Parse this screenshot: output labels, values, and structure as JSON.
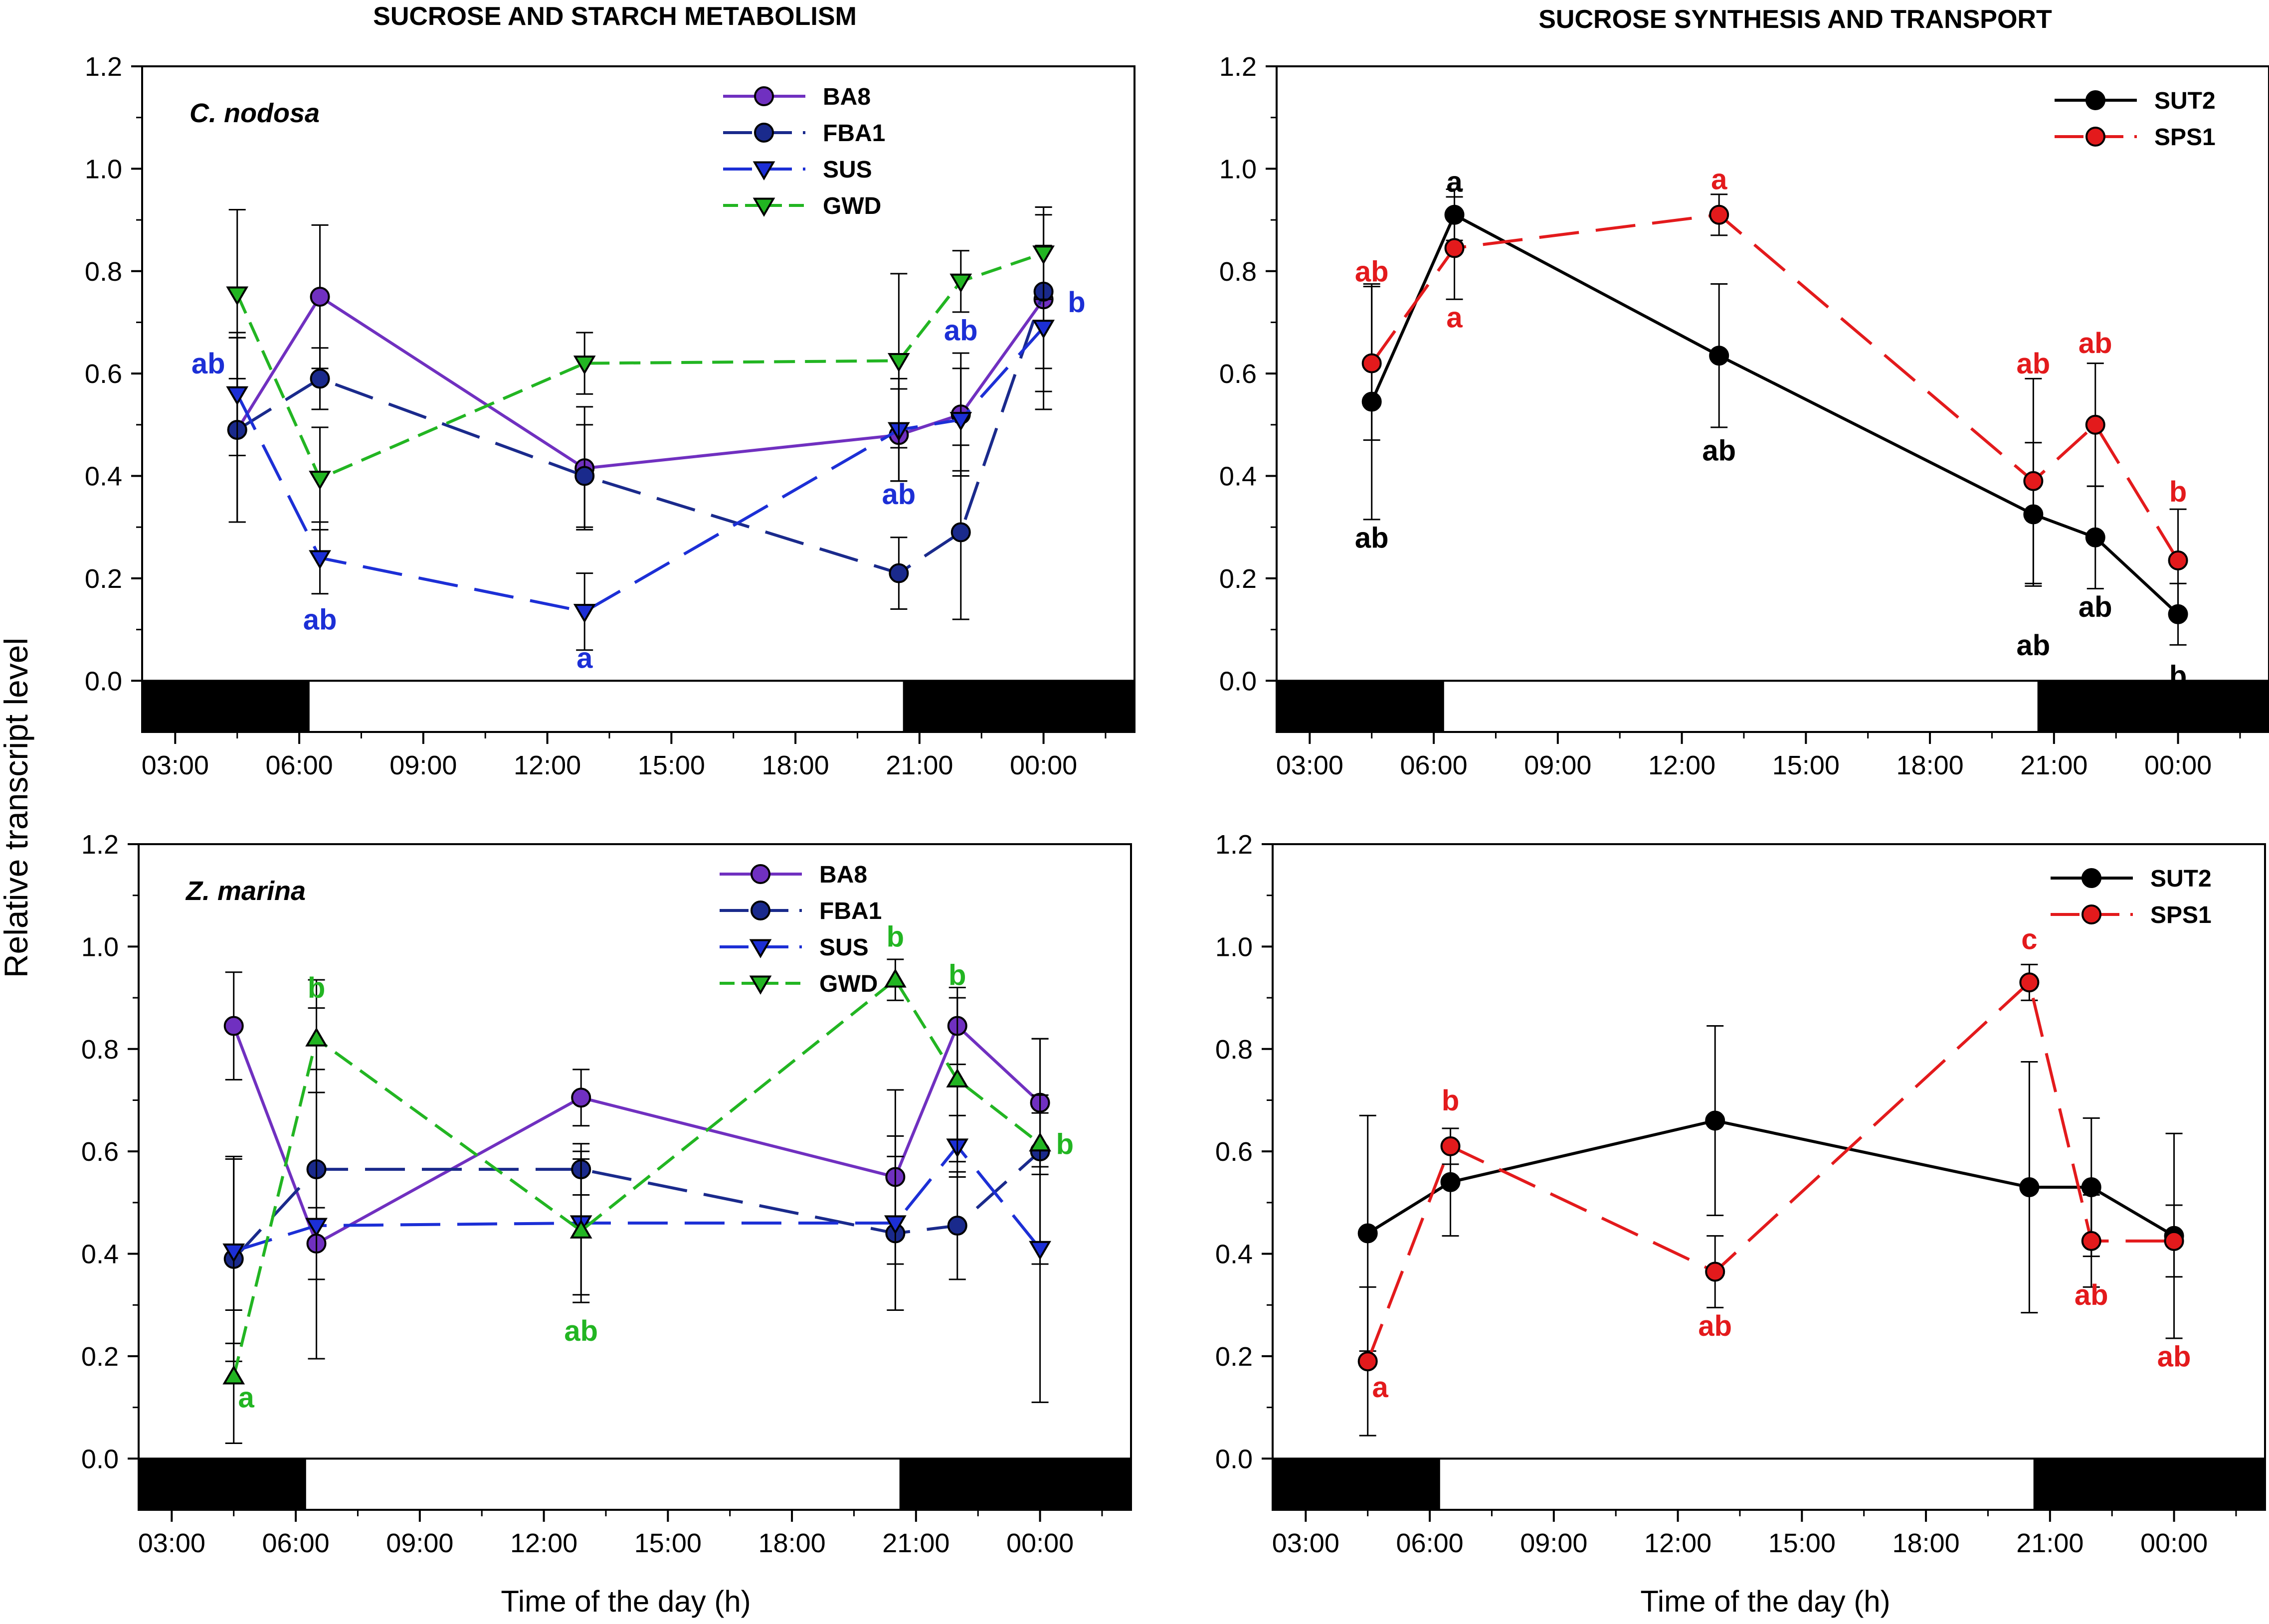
{
  "figure": {
    "col_titles": [
      "SUCROSE AND STARCH METABOLISM",
      "SUCROSE SYNTHESIS AND TRANSPORT"
    ],
    "shared_ylabel": "Relative transcript level",
    "shared_xlabel": "Time of the day (h)"
  },
  "chart_data": [
    {
      "type": "line",
      "panel": "top-left",
      "species_label": "C. nodosa",
      "x_tick_labels": [
        "03:00",
        "06:00",
        "09:00",
        "12:00",
        "15:00",
        "18:00",
        "21:00",
        "00:00"
      ],
      "x_ticks": [
        3,
        6,
        9,
        12,
        15,
        18,
        21,
        24
      ],
      "xlim": [
        2.2,
        26.2
      ],
      "y_tick_labels": [
        "0.0",
        "0.2",
        "0.4",
        "0.6",
        "0.8",
        "1.0",
        "1.2"
      ],
      "y_ticks": [
        0,
        0.2,
        0.4,
        0.6,
        0.8,
        1.0,
        1.2
      ],
      "ylim": [
        -0.1,
        1.2
      ],
      "dark_periods": [
        [
          2.2,
          6.25
        ],
        [
          20.6,
          26.2
        ]
      ],
      "legend_position": "top-center",
      "series": [
        {
          "name": "BA8",
          "color": "#7030C0",
          "marker": "circle",
          "dash": "solid",
          "x": [
            4.5,
            6.5,
            12.9,
            20.5,
            22.0,
            24.0
          ],
          "y": [
            0.49,
            0.75,
            0.415,
            0.48,
            0.52,
            0.745
          ],
          "err": [
            0.18,
            0.14,
            0.12,
            0.09,
            0.12,
            0.18
          ]
        },
        {
          "name": "FBA1",
          "color": "#1A2A8C",
          "marker": "circle",
          "dash": "longdash",
          "x": [
            4.5,
            6.5,
            12.9,
            20.5,
            22.0,
            24.0
          ],
          "y": [
            0.49,
            0.59,
            0.4,
            0.21,
            0.29,
            0.76
          ],
          "err": [
            0.18,
            0.06,
            0.1,
            0.07,
            0.17,
            0.15
          ]
        },
        {
          "name": "SUS",
          "color": "#1C2FD6",
          "marker": "triangle-down",
          "dash": "longdash",
          "x": [
            4.5,
            6.5,
            12.9,
            20.5,
            22.0,
            24.0
          ],
          "y": [
            0.56,
            0.24,
            0.135,
            0.49,
            0.51,
            0.69
          ],
          "err": [
            0.12,
            0.07,
            0.075,
            0.1,
            0.1,
            0.16
          ]
        },
        {
          "name": "GWD",
          "color": "#22B522",
          "marker": "triangle-down",
          "dash": "dash",
          "x": [
            4.5,
            6.5,
            12.9,
            20.5,
            22.0,
            24.0
          ],
          "y": [
            0.755,
            0.395,
            0.62,
            0.625,
            0.78,
            0.835
          ],
          "err": [
            0.165,
            0.1,
            0.06,
            0.17,
            0.06,
            0.09
          ]
        }
      ],
      "annotations": [
        {
          "text": "ab",
          "x": 3.8,
          "y": 0.6,
          "color": "#1C2FD6"
        },
        {
          "text": "ab",
          "x": 6.5,
          "y": 0.1,
          "color": "#1C2FD6"
        },
        {
          "text": "a",
          "x": 12.9,
          "y": 0.025,
          "color": "#1C2FD6"
        },
        {
          "text": "ab",
          "x": 20.5,
          "y": 0.345,
          "color": "#1C2FD6"
        },
        {
          "text": "ab",
          "x": 22.0,
          "y": 0.665,
          "color": "#1C2FD6"
        },
        {
          "text": "b",
          "x": 24.8,
          "y": 0.72,
          "color": "#1C2FD6"
        }
      ]
    },
    {
      "type": "line",
      "panel": "top-right",
      "species_label": "",
      "x_tick_labels": [
        "03:00",
        "06:00",
        "09:00",
        "12:00",
        "15:00",
        "18:00",
        "21:00",
        "00:00"
      ],
      "x_ticks": [
        3,
        6,
        9,
        12,
        15,
        18,
        21,
        24
      ],
      "xlim": [
        2.2,
        26.2
      ],
      "y_tick_labels": [
        "0.0",
        "0.2",
        "0.4",
        "0.6",
        "0.8",
        "1.0",
        "1.2"
      ],
      "y_ticks": [
        0,
        0.2,
        0.4,
        0.6,
        0.8,
        1.0,
        1.2
      ],
      "ylim": [
        -0.1,
        1.2
      ],
      "dark_periods": [
        [
          2.2,
          6.25
        ],
        [
          20.6,
          26.2
        ]
      ],
      "legend_position": "top-right",
      "series": [
        {
          "name": "SUT2",
          "color": "#000000",
          "marker": "circle",
          "dash": "solid",
          "x": [
            4.5,
            6.5,
            12.9,
            20.5,
            22.0,
            24.0
          ],
          "y": [
            0.545,
            0.91,
            0.635,
            0.325,
            0.28,
            0.13
          ],
          "err": [
            0.23,
            0.05,
            0.14,
            0.14,
            0.1,
            0.06
          ]
        },
        {
          "name": "SPS1",
          "color": "#E31A1C",
          "marker": "circle",
          "dash": "longdash",
          "x": [
            4.5,
            6.5,
            12.9,
            20.5,
            22.0,
            24.0
          ],
          "y": [
            0.62,
            0.845,
            0.91,
            0.39,
            0.5,
            0.235
          ],
          "err": [
            0.15,
            0.1,
            0.04,
            0.2,
            0.12,
            0.1
          ]
        }
      ],
      "annotations": [
        {
          "text": "ab",
          "x": 4.5,
          "y": 0.78,
          "color": "#E31A1C"
        },
        {
          "text": "a",
          "x": 6.5,
          "y": 0.955,
          "color": "#000000"
        },
        {
          "text": "a",
          "x": 6.5,
          "y": 0.69,
          "color": "#E31A1C"
        },
        {
          "text": "a",
          "x": 12.9,
          "y": 0.96,
          "color": "#E31A1C"
        },
        {
          "text": "ab",
          "x": 4.5,
          "y": 0.26,
          "color": "#000000"
        },
        {
          "text": "ab",
          "x": 12.9,
          "y": 0.43,
          "color": "#000000"
        },
        {
          "text": "ab",
          "x": 20.5,
          "y": 0.6,
          "color": "#E31A1C"
        },
        {
          "text": "ab",
          "x": 22.0,
          "y": 0.64,
          "color": "#E31A1C"
        },
        {
          "text": "b",
          "x": 24.0,
          "y": 0.35,
          "color": "#E31A1C"
        },
        {
          "text": "ab",
          "x": 20.5,
          "y": 0.05,
          "color": "#000000"
        },
        {
          "text": "ab",
          "x": 22.0,
          "y": 0.125,
          "color": "#000000"
        },
        {
          "text": "b",
          "x": 24.0,
          "y": -0.01,
          "color": "#000000"
        }
      ]
    },
    {
      "type": "line",
      "panel": "bottom-left",
      "species_label": "Z. marina",
      "x_tick_labels": [
        "03:00",
        "06:00",
        "09:00",
        "12:00",
        "15:00",
        "18:00",
        "21:00",
        "00:00"
      ],
      "x_ticks": [
        3,
        6,
        9,
        12,
        15,
        18,
        21,
        24
      ],
      "xlim": [
        2.2,
        26.2
      ],
      "y_tick_labels": [
        "0.0",
        "0.2",
        "0.4",
        "0.6",
        "0.8",
        "1.0",
        "1.2"
      ],
      "y_ticks": [
        0,
        0.2,
        0.4,
        0.6,
        0.8,
        1.0,
        1.2
      ],
      "ylim": [
        -0.1,
        1.2
      ],
      "dark_periods": [
        [
          2.2,
          6.25
        ],
        [
          20.6,
          26.2
        ]
      ],
      "legend_position": "top-center",
      "series": [
        {
          "name": "BA8",
          "color": "#7030C0",
          "marker": "circle",
          "dash": "solid",
          "x": [
            4.5,
            6.5,
            12.9,
            20.5,
            22.0,
            24.0
          ],
          "y": [
            0.845,
            0.42,
            0.705,
            0.55,
            0.845,
            0.695
          ],
          "err": [
            0.105,
            0.07,
            0.055,
            0.17,
            0.075,
            0.125
          ]
        },
        {
          "name": "FBA1",
          "color": "#1A2A8C",
          "marker": "circle",
          "dash": "longdash",
          "x": [
            4.5,
            6.5,
            12.9,
            20.5,
            22.0,
            24.0
          ],
          "y": [
            0.39,
            0.565,
            0.565,
            0.44,
            0.455,
            0.6
          ],
          "err": [
            0.2,
            0.37,
            0.05,
            0.15,
            0.105,
            0.22
          ]
        },
        {
          "name": "SUS",
          "color": "#1C2FD6",
          "marker": "triangle-down",
          "dash": "longdash",
          "x": [
            4.5,
            6.5,
            12.9,
            20.5,
            22.0,
            24.0
          ],
          "y": [
            0.405,
            0.455,
            0.46,
            0.46,
            0.61,
            0.41
          ],
          "err": [
            0.18,
            0.26,
            0.14,
            0.17,
            0.06,
            0.3
          ]
        },
        {
          "name": "GWD",
          "color": "#22B522",
          "marker": "triangle-up",
          "dash": "dash",
          "x": [
            4.5,
            6.5,
            12.9,
            20.5,
            22.0,
            24.0
          ],
          "y": [
            0.16,
            0.82,
            0.445,
            0.935,
            0.74,
            0.615
          ],
          "err": [
            0.13,
            0.06,
            0.14,
            0.04,
            0.16,
            0.06
          ]
        }
      ],
      "annotations": [
        {
          "text": "a",
          "x": 4.8,
          "y": 0.1,
          "color": "#22B522"
        },
        {
          "text": "b",
          "x": 6.5,
          "y": 0.9,
          "color": "#22B522"
        },
        {
          "text": "ab",
          "x": 12.9,
          "y": 0.23,
          "color": "#22B522"
        },
        {
          "text": "b",
          "x": 20.5,
          "y": 1.0,
          "color": "#22B522"
        },
        {
          "text": "b",
          "x": 22.0,
          "y": 0.925,
          "color": "#22B522"
        },
        {
          "text": "b",
          "x": 24.6,
          "y": 0.595,
          "color": "#22B522"
        }
      ]
    },
    {
      "type": "line",
      "panel": "bottom-right",
      "species_label": "",
      "x_tick_labels": [
        "03:00",
        "06:00",
        "09:00",
        "12:00",
        "15:00",
        "18:00",
        "21:00",
        "00:00"
      ],
      "x_ticks": [
        3,
        6,
        9,
        12,
        15,
        18,
        21,
        24
      ],
      "xlim": [
        2.2,
        26.2
      ],
      "y_tick_labels": [
        "0.0",
        "0.2",
        "0.4",
        "0.6",
        "0.8",
        "1.0",
        "1.2"
      ],
      "y_ticks": [
        0,
        0.2,
        0.4,
        0.6,
        0.8,
        1.0,
        1.2
      ],
      "ylim": [
        -0.1,
        1.2
      ],
      "dark_periods": [
        [
          2.2,
          6.25
        ],
        [
          20.6,
          26.2
        ]
      ],
      "legend_position": "top-right",
      "series": [
        {
          "name": "SUT2",
          "color": "#000000",
          "marker": "circle",
          "dash": "solid",
          "x": [
            4.5,
            6.5,
            12.9,
            20.5,
            22.0,
            24.0
          ],
          "y": [
            0.44,
            0.54,
            0.66,
            0.53,
            0.53,
            0.435
          ],
          "err": [
            0.23,
            0.105,
            0.185,
            0.245,
            0.135,
            0.2
          ]
        },
        {
          "name": "SPS1",
          "color": "#E31A1C",
          "marker": "circle",
          "dash": "longdash",
          "x": [
            4.5,
            6.5,
            12.9,
            20.5,
            22.0,
            24.0
          ],
          "y": [
            0.19,
            0.61,
            0.365,
            0.93,
            0.425,
            0.425
          ],
          "err": [
            0.145,
            0.035,
            0.07,
            0.035,
            0.09,
            0.07
          ]
        }
      ],
      "annotations": [
        {
          "text": "a",
          "x": 4.8,
          "y": 0.12,
          "color": "#E31A1C"
        },
        {
          "text": "b",
          "x": 6.5,
          "y": 0.68,
          "color": "#E31A1C"
        },
        {
          "text": "ab",
          "x": 12.9,
          "y": 0.24,
          "color": "#E31A1C"
        },
        {
          "text": "c",
          "x": 20.5,
          "y": 0.995,
          "color": "#E31A1C"
        },
        {
          "text": "ab",
          "x": 22.0,
          "y": 0.3,
          "color": "#E31A1C"
        },
        {
          "text": "ab",
          "x": 24.0,
          "y": 0.18,
          "color": "#E31A1C"
        }
      ]
    }
  ]
}
